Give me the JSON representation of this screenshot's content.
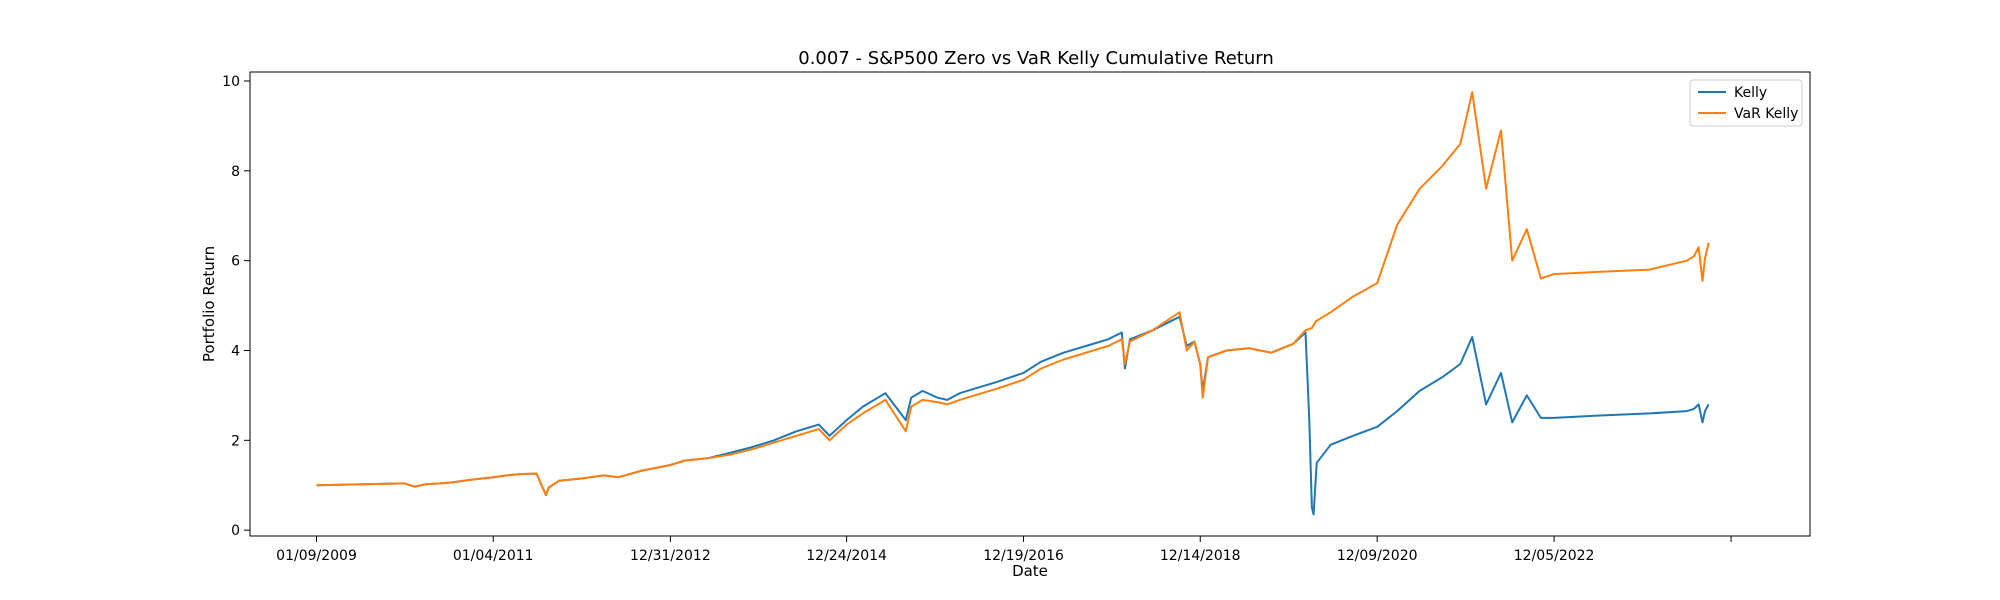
{
  "chart_data": {
    "type": "line",
    "title": "0.007 - S&P500 Zero vs VaR Kelly Cumulative Return",
    "xlabel": "Date",
    "ylabel": "Portfolio Return",
    "x_ticks": [
      "01/09/2009",
      "01/04/2011",
      "12/31/2012",
      "12/24/2014",
      "12/19/2016",
      "12/14/2018",
      "12/09/2020",
      "12/05/2022"
    ],
    "y_ticks": [
      0,
      2,
      4,
      6,
      8,
      10
    ],
    "xlim": [
      "2008-04-11",
      "2025-10-20"
    ],
    "ylim": [
      -0.13,
      10.2
    ],
    "grid": false,
    "legend_position": "top-right",
    "colors": {
      "Kelly": "#1f77b4",
      "VaR Kelly": "#ff7f0e"
    },
    "series": [
      {
        "name": "Kelly",
        "x": [
          "2009-01-09",
          "2010-01-05",
          "2010-02-15",
          "2010-04-01",
          "2010-06-01",
          "2010-07-15",
          "2010-10-01",
          "2011-01-04",
          "2011-03-01",
          "2011-05-01",
          "2011-07-01",
          "2011-08-08",
          "2011-08-20",
          "2011-10-01",
          "2012-01-01",
          "2012-04-01",
          "2012-06-01",
          "2012-09-01",
          "2012-12-31",
          "2013-03-01",
          "2013-06-01",
          "2013-09-01",
          "2013-12-01",
          "2014-03-01",
          "2014-06-01",
          "2014-09-01",
          "2014-10-15",
          "2014-12-24",
          "2015-03-01",
          "2015-06-01",
          "2015-08-24",
          "2015-09-15",
          "2015-11-01",
          "2016-01-01",
          "2016-02-10",
          "2016-04-01",
          "2016-07-01",
          "2016-09-01",
          "2016-12-19",
          "2017-03-01",
          "2017-06-01",
          "2017-09-01",
          "2017-12-01",
          "2018-01-26",
          "2018-02-08",
          "2018-03-01",
          "2018-06-01",
          "2018-09-20",
          "2018-10-20",
          "2018-11-20",
          "2018-12-14",
          "2018-12-24",
          "2019-01-15",
          "2019-04-01",
          "2019-07-01",
          "2019-10-01",
          "2019-12-31",
          "2020-02-19",
          "2020-03-05",
          "2020-03-16",
          "2020-03-23",
          "2020-04-05",
          "2020-06-01",
          "2020-09-01",
          "2020-12-09",
          "2021-03-01",
          "2021-06-01",
          "2021-09-01",
          "2021-11-15",
          "2022-01-03",
          "2022-03-01",
          "2022-05-01",
          "2022-06-16",
          "2022-08-15",
          "2022-10-12",
          "2022-12-05",
          "2023-06-01",
          "2024-01-01",
          "2024-06-01",
          "2024-07-01",
          "2024-07-20",
          "2024-08-05",
          "2024-08-15",
          "2024-08-30"
        ],
        "y": [
          1.0,
          1.04,
          0.97,
          1.02,
          1.04,
          1.06,
          1.12,
          1.18,
          1.22,
          1.25,
          1.26,
          0.78,
          0.95,
          1.1,
          1.15,
          1.22,
          1.18,
          1.32,
          1.45,
          1.55,
          1.6,
          1.72,
          1.85,
          2.0,
          2.2,
          2.35,
          2.1,
          2.45,
          2.75,
          3.05,
          2.45,
          2.95,
          3.1,
          2.95,
          2.9,
          3.05,
          3.2,
          3.3,
          3.5,
          3.75,
          3.95,
          4.1,
          4.25,
          4.4,
          3.6,
          4.25,
          4.45,
          4.75,
          4.1,
          4.2,
          3.7,
          3.1,
          3.85,
          4.0,
          4.05,
          3.95,
          4.15,
          4.4,
          2.5,
          0.5,
          0.35,
          1.5,
          1.9,
          2.1,
          2.3,
          2.65,
          3.1,
          3.4,
          3.7,
          4.3,
          2.8,
          3.5,
          2.4,
          3.0,
          2.5,
          2.5,
          2.55,
          2.6,
          2.65,
          2.7,
          2.8,
          2.4,
          2.65,
          2.8
        ]
      },
      {
        "name": "VaR Kelly",
        "x": [
          "2009-01-09",
          "2010-01-05",
          "2010-02-15",
          "2010-04-01",
          "2010-06-01",
          "2010-07-15",
          "2010-10-01",
          "2011-01-04",
          "2011-03-01",
          "2011-05-01",
          "2011-07-01",
          "2011-08-08",
          "2011-08-20",
          "2011-10-01",
          "2012-01-01",
          "2012-04-01",
          "2012-06-01",
          "2012-09-01",
          "2012-12-31",
          "2013-03-01",
          "2013-06-01",
          "2013-09-01",
          "2013-12-01",
          "2014-03-01",
          "2014-06-01",
          "2014-09-01",
          "2014-10-15",
          "2014-12-24",
          "2015-03-01",
          "2015-06-01",
          "2015-08-24",
          "2015-09-15",
          "2015-11-01",
          "2016-01-01",
          "2016-02-10",
          "2016-04-01",
          "2016-07-01",
          "2016-09-01",
          "2016-12-19",
          "2017-03-01",
          "2017-06-01",
          "2017-09-01",
          "2017-12-01",
          "2018-01-26",
          "2018-02-08",
          "2018-03-01",
          "2018-06-01",
          "2018-09-20",
          "2018-10-20",
          "2018-11-20",
          "2018-12-14",
          "2018-12-24",
          "2019-01-15",
          "2019-04-01",
          "2019-07-01",
          "2019-10-01",
          "2019-12-31",
          "2020-02-19",
          "2020-03-16",
          "2020-04-01",
          "2020-06-01",
          "2020-09-01",
          "2020-12-09",
          "2021-03-01",
          "2021-06-01",
          "2021-09-01",
          "2021-11-15",
          "2022-01-03",
          "2022-03-01",
          "2022-05-01",
          "2022-06-16",
          "2022-08-15",
          "2022-10-12",
          "2022-12-05",
          "2023-06-01",
          "2024-01-01",
          "2024-06-01",
          "2024-07-01",
          "2024-07-20",
          "2024-08-05",
          "2024-08-15",
          "2024-08-30"
        ],
        "y": [
          1.0,
          1.04,
          0.97,
          1.02,
          1.04,
          1.06,
          1.12,
          1.18,
          1.22,
          1.25,
          1.26,
          0.78,
          0.95,
          1.1,
          1.15,
          1.22,
          1.18,
          1.32,
          1.45,
          1.55,
          1.6,
          1.68,
          1.8,
          1.95,
          2.1,
          2.25,
          2.0,
          2.35,
          2.6,
          2.9,
          2.2,
          2.75,
          2.9,
          2.85,
          2.8,
          2.9,
          3.05,
          3.15,
          3.35,
          3.6,
          3.8,
          3.95,
          4.1,
          4.25,
          3.7,
          4.2,
          4.45,
          4.85,
          4.0,
          4.2,
          3.7,
          2.95,
          3.85,
          4.0,
          4.05,
          3.95,
          4.15,
          4.45,
          4.5,
          4.65,
          4.85,
          5.2,
          5.5,
          6.8,
          7.6,
          8.1,
          8.6,
          9.75,
          7.6,
          8.9,
          6.0,
          6.7,
          5.6,
          5.7,
          5.75,
          5.8,
          6.0,
          6.1,
          6.3,
          5.55,
          6.05,
          6.4
        ]
      }
    ]
  }
}
